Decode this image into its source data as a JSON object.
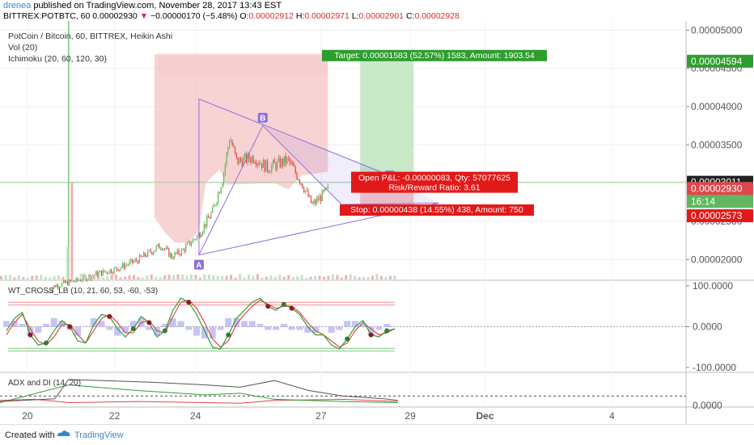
{
  "header": {
    "author": "drenea",
    "published": " published on TradingView.com, November 28, 2017 13:43 EST",
    "symbol": "BITTREX:POTBTC, 60",
    "last": "0.00002930",
    "change": "−0.00000170 (−5.48%)",
    "o_label": "O:",
    "o": "0.00002912",
    "h_label": "H:",
    "h": "0.00002971",
    "l_label": "L:",
    "l": "0.00002901",
    "c_label": "C:",
    "c": "0.00002928"
  },
  "legend": {
    "line1": "PotCoin / Bitcoin, 60, BITTREX, Heikin Ashi",
    "line2": "Vol (20)",
    "line3": "Ichimoku (20, 60, 120, 30)"
  },
  "colors": {
    "up": "#5fb85f",
    "down": "#e0474c",
    "pattern": "#8b6ee0",
    "target_fill": "#c8e8c8",
    "target_label": "#2e9e2e",
    "stop_label": "#e11919",
    "cloud": "#f6c4c4",
    "wt1": "#2e9e2e",
    "wt2": "#e0474c",
    "wt_diff": "#b7b7f2",
    "adx": "#555555",
    "di_plus": "#2e9e2e",
    "di_minus": "#e0474c"
  },
  "chart_data": [
    {
      "type": "candlestick",
      "title": "PotCoin / Bitcoin, 60, BITTREX, Heikin Ashi",
      "x_ticks": [
        "20",
        "22",
        "24",
        "27",
        "29",
        "Dec",
        "4"
      ],
      "y_ticks": [
        "0.00002000",
        "0.00002500",
        "0.00003000",
        "0.00003500",
        "0.00004000",
        "0.00004500",
        "0.00005000"
      ],
      "ylim": [
        1.74e-05,
        5.12e-05
      ],
      "trend": [
        [
          0.0,
          1.49e-05
        ],
        [
          0.06,
          1.49e-05
        ],
        [
          0.08,
          1.66e-05
        ],
        [
          0.11,
          1.72e-05
        ],
        [
          0.14,
          1.81e-05
        ],
        [
          0.17,
          1.88e-05
        ],
        [
          0.2,
          1.99e-05
        ],
        [
          0.235,
          2.19e-05
        ],
        [
          0.25,
          2.04e-05
        ],
        [
          0.265,
          2.11e-05
        ],
        [
          0.29,
          2.33e-05
        ],
        [
          0.31,
          2.63e-05
        ],
        [
          0.325,
          3.08e-05
        ],
        [
          0.335,
          3.61e-05
        ],
        [
          0.345,
          3.28e-05
        ],
        [
          0.37,
          3.34e-05
        ],
        [
          0.39,
          3.2e-05
        ],
        [
          0.42,
          3.3e-05
        ],
        [
          0.44,
          3e-05
        ],
        [
          0.455,
          2.71e-05
        ],
        [
          0.47,
          2.84e-05
        ],
        [
          0.48,
          2.93e-05
        ]
      ],
      "pattern_points": [
        {
          "label": "A",
          "value": 2.06e-05
        },
        {
          "label": "B",
          "value": 3.75e-05
        },
        {
          "label": "D",
          "value": 3.1e-05
        }
      ],
      "pattern_outline": [
        4.1e-05,
        2.72e-05,
        2.74e-05
      ],
      "position": {
        "entry": 3.011e-05,
        "target_level": 4.594e-05,
        "stop_level": 2.573e-05,
        "target_text": "Target: 0.00001583 (52.57%) 1583, Amount: 1903.54",
        "stop_text": "Stop: 0.00000438 (14.55%) 438, Amount: 750",
        "pnl_text": "Open P&L: -0.00000083, Qty: 57077625",
        "rr_text": "Risk/Reward Ratio: 3.61"
      },
      "price_labels": [
        {
          "text": "0.00004594",
          "value": 4.594e-05,
          "color": "#2e9e2e"
        },
        {
          "text": "0.00003011",
          "value": 3.011e-05,
          "color": "#222222"
        },
        {
          "text": "0.00002928",
          "value": 2.928e-05,
          "color": "#5fb85f"
        },
        {
          "text": "16:14",
          "value": 2.76e-05,
          "color": "#5fb85f"
        },
        {
          "text": "0.00002930",
          "value": 2.93e-05,
          "color": "#e0474c"
        },
        {
          "text": "0.00002573",
          "value": 2.573e-05,
          "color": "#e11919"
        }
      ]
    },
    {
      "type": "line",
      "title": "WT_CROSS_LB (10, 21, 60, 53, -60, -53)",
      "y_ticks": [
        "100.0000",
        "0.0000",
        "-100.0000"
      ],
      "ylim": [
        -110,
        110
      ],
      "levels": [
        60,
        53,
        -53,
        -60
      ],
      "series": [
        {
          "values": [
            -10,
            20,
            35,
            -20,
            -45,
            -40,
            -10,
            15,
            0,
            -35,
            -40,
            5,
            30,
            25,
            -5,
            -25,
            -5,
            25,
            10,
            -25,
            -10,
            40,
            70,
            60,
            30,
            -10,
            -50,
            -55,
            -20,
            20,
            40,
            60,
            70,
            50,
            40,
            55,
            45,
            30,
            0,
            -20,
            -20,
            -45,
            -55,
            -30,
            0,
            15,
            -20,
            -25,
            -10,
            -5
          ]
        },
        {
          "values": [
            -20,
            10,
            30,
            -5,
            -35,
            -45,
            -25,
            5,
            5,
            -20,
            -40,
            -10,
            20,
            30,
            10,
            -15,
            -15,
            10,
            15,
            -10,
            -15,
            25,
            60,
            65,
            45,
            10,
            -30,
            -50,
            -35,
            5,
            30,
            50,
            65,
            55,
            45,
            50,
            50,
            35,
            10,
            -10,
            -20,
            -35,
            -50,
            -40,
            -10,
            10,
            -5,
            -20,
            -15,
            -5
          ]
        }
      ]
    },
    {
      "type": "line",
      "title": "ADX and DI (14, 20)",
      "y_ticks": [
        "0.0000"
      ],
      "ylim": [
        0,
        60
      ],
      "levels": [
        20
      ]
    }
  ],
  "footer": {
    "created": "Created with",
    "brand": "TradingView"
  }
}
